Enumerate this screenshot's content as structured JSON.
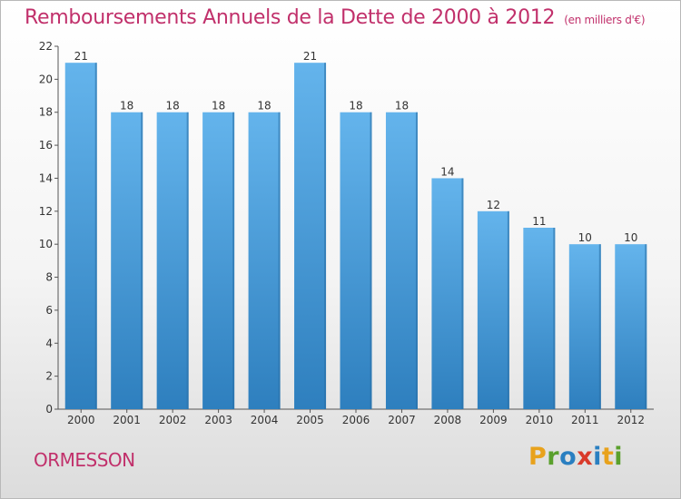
{
  "title": "Remboursements Annuels de la Dette de 2000 à 2012",
  "subtitle": "(en milliers d'€)",
  "commune": "ORMESSON",
  "logo": {
    "letters": [
      "P",
      "r",
      "o",
      "x",
      "i",
      "t",
      "i"
    ],
    "colors": [
      "#e8a21c",
      "#5aa02c",
      "#2a7fc1",
      "#d93a2a",
      "#2a7fc1",
      "#e8a21c",
      "#5aa02c"
    ]
  },
  "colors": {
    "title": "#c1306b",
    "bar_top": "#64b4ec",
    "bar_bottom": "#2e7fbe",
    "bar_side": "#2a6fa6"
  },
  "chart_data": {
    "type": "bar",
    "title": "Remboursements Annuels de la Dette de 2000 à 2012",
    "xlabel": "",
    "ylabel": "",
    "categories": [
      "2000",
      "2001",
      "2002",
      "2003",
      "2004",
      "2005",
      "2006",
      "2007",
      "2008",
      "2009",
      "2010",
      "2011",
      "2012"
    ],
    "values": [
      21,
      18,
      18,
      18,
      18,
      21,
      18,
      18,
      14,
      12,
      11,
      10,
      10
    ],
    "ylim": [
      0,
      22
    ],
    "yticks": [
      0,
      2,
      4,
      6,
      8,
      10,
      12,
      14,
      16,
      18,
      20,
      22
    ],
    "grid": false
  }
}
